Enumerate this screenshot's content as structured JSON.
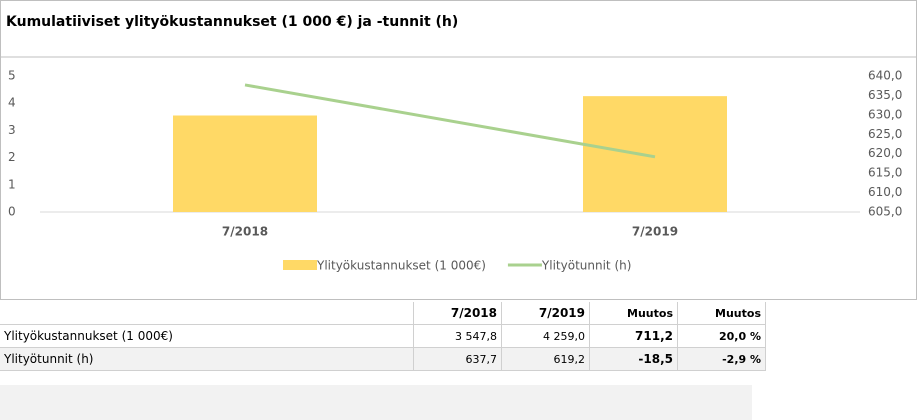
{
  "chart_data": {
    "type": "bar-line",
    "title": "Kumulatiiviset ylityökustannukset (1 000 €) ja -tunnit (h)",
    "categories": [
      "7/2018",
      "7/2019"
    ],
    "series": [
      {
        "name": "Ylityökustannukset (1 000€)",
        "color": "#ffd966",
        "type": "bar",
        "values": [
          3.5478,
          4.259
        ]
      },
      {
        "name": "Ylityötunnit (h)",
        "color": "#a9d18e",
        "type": "line",
        "axis": "y2",
        "values": [
          637.7,
          619.2
        ]
      }
    ],
    "ylim": [
      0,
      5
    ],
    "yticks": [
      0,
      1,
      2,
      3,
      4,
      5
    ],
    "y2lim": [
      605,
      640
    ],
    "y2ticks": [
      {
        "value": 605,
        "label": "605,0"
      },
      {
        "value": 610,
        "label": "610,0"
      },
      {
        "value": 615,
        "label": "615,0"
      },
      {
        "value": 620,
        "label": "620,0"
      },
      {
        "value": 625,
        "label": "625,0"
      },
      {
        "value": 630,
        "label": "630,0"
      },
      {
        "value": 635,
        "label": "635,0"
      },
      {
        "value": 640,
        "label": "640,0"
      }
    ],
    "legend": "bottom"
  },
  "table": {
    "header": [
      "7/2018",
      "7/2019",
      "Muutos",
      "Muutos"
    ],
    "rows": [
      [
        "Ylityökustannukset (1 000€)",
        "3 547,8",
        "4 259,0",
        "711,2",
        "20,0 %"
      ],
      [
        "Ylityötunnit (h)",
        "637,7",
        "619,2",
        "-18,5",
        "-2,9 %"
      ]
    ]
  }
}
